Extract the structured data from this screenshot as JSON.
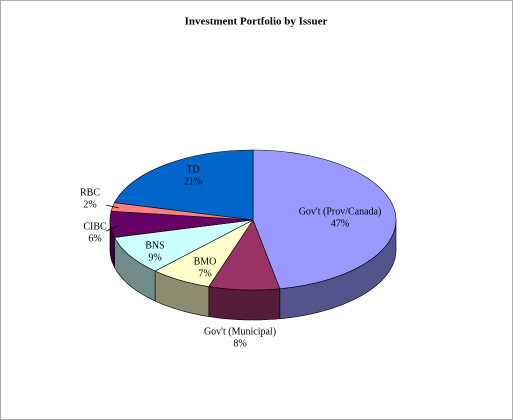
{
  "chart_data": {
    "type": "pie3d",
    "title": "Investment Portfolio by Issuer",
    "categories": [
      "Gov't (Prov/Canada)",
      "Gov't (Municipal)",
      "BMO",
      "BNS",
      "CIBC",
      "RBC",
      "TD"
    ],
    "values": [
      47,
      8,
      7,
      9,
      6,
      2,
      21
    ],
    "value_labels": [
      "47%",
      "8%",
      "7%",
      "9%",
      "6%",
      "2%",
      "21%"
    ],
    "colors": [
      "#9999ff",
      "#993366",
      "#ffffcc",
      "#ccffff",
      "#660066",
      "#ff8080",
      "#0066cc"
    ]
  }
}
